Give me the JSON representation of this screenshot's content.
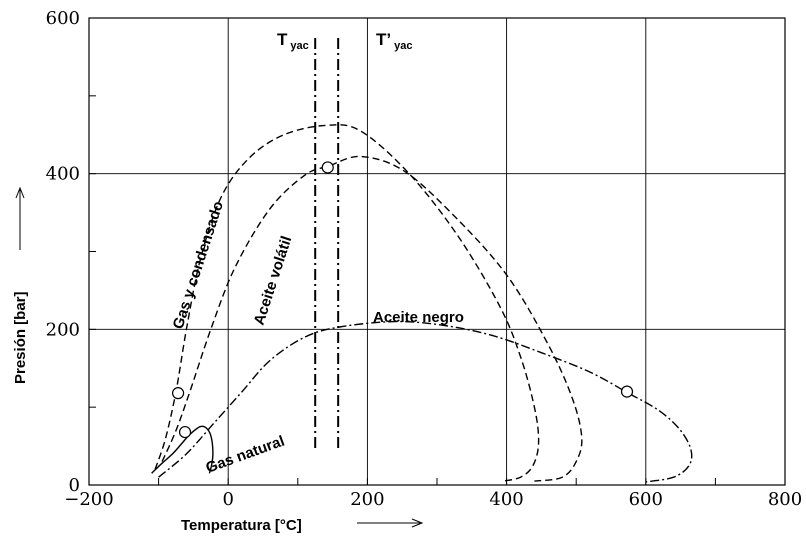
{
  "chart_data": {
    "type": "line",
    "xlabel": "Temperatura [°C]",
    "ylabel": "Presión [bar]",
    "xlim": [
      -200,
      800
    ],
    "ylim": [
      0,
      600
    ],
    "x_ticks": [
      -200,
      0,
      200,
      400,
      600,
      800
    ],
    "y_ticks": [
      0,
      200,
      400,
      600
    ],
    "x_tick_labels": [
      "−200",
      "0",
      "200",
      "400",
      "600",
      "800"
    ],
    "y_tick_labels": [
      "0",
      "200",
      "400",
      "600"
    ],
    "grid": true,
    "series": [
      {
        "name": "Gas natural",
        "style": "solid",
        "points": [
          [
            -110,
            15
          ],
          [
            -95,
            28
          ],
          [
            -80,
            40
          ],
          [
            -68,
            52
          ],
          [
            -55,
            65
          ],
          [
            -40,
            75
          ],
          [
            -30,
            72
          ],
          [
            -24,
            60
          ],
          [
            -22,
            40
          ],
          [
            -24,
            25
          ],
          [
            -27,
            15
          ]
        ],
        "critical_point": [
          -62,
          68
        ]
      },
      {
        "name": "Gas y condensado",
        "style": "dashed",
        "points": [
          [
            -105,
            20
          ],
          [
            -90,
            60
          ],
          [
            -75,
            120
          ],
          [
            -60,
            200
          ],
          [
            -40,
            290
          ],
          [
            -10,
            370
          ],
          [
            30,
            420
          ],
          [
            80,
            450
          ],
          [
            140,
            462
          ],
          [
            190,
            455
          ],
          [
            260,
            400
          ],
          [
            330,
            320
          ],
          [
            390,
            230
          ],
          [
            420,
            165
          ],
          [
            440,
            100
          ],
          [
            446,
            55
          ],
          [
            438,
            25
          ],
          [
            420,
            10
          ],
          [
            395,
            5
          ]
        ],
        "critical_point": [
          -72,
          118
        ]
      },
      {
        "name": "Aceite volátil",
        "style": "dashed",
        "points": [
          [
            -95,
            30
          ],
          [
            -75,
            70
          ],
          [
            -55,
            120
          ],
          [
            -25,
            200
          ],
          [
            10,
            280
          ],
          [
            60,
            355
          ],
          [
            110,
            398
          ],
          [
            145,
            410
          ],
          [
            190,
            422
          ],
          [
            250,
            405
          ],
          [
            320,
            350
          ],
          [
            400,
            270
          ],
          [
            460,
            180
          ],
          [
            495,
            110
          ],
          [
            508,
            60
          ],
          [
            500,
            30
          ],
          [
            480,
            10
          ],
          [
            440,
            5
          ]
        ],
        "critical_point": [
          143,
          408
        ]
      },
      {
        "name": "Aceite negro",
        "style": "dashdot",
        "points": [
          [
            -100,
            10
          ],
          [
            -60,
            40
          ],
          [
            -20,
            80
          ],
          [
            20,
            120
          ],
          [
            60,
            160
          ],
          [
            110,
            190
          ],
          [
            160,
            203
          ],
          [
            240,
            210
          ],
          [
            310,
            205
          ],
          [
            380,
            192
          ],
          [
            450,
            170
          ],
          [
            520,
            145
          ],
          [
            575,
            118
          ],
          [
            620,
            95
          ],
          [
            650,
            70
          ],
          [
            665,
            45
          ],
          [
            662,
            25
          ],
          [
            640,
            10
          ],
          [
            600,
            4
          ]
        ],
        "critical_point": [
          573,
          120
        ]
      }
    ],
    "vertical_lines": [
      {
        "name": "T yac",
        "label_main": "T",
        "label_sub": "yac",
        "x": 125,
        "style": "dashdot"
      },
      {
        "name": "T' yac",
        "label_main": "T’",
        "label_sub": "yac",
        "x": 158,
        "style": "dashdot"
      }
    ]
  }
}
